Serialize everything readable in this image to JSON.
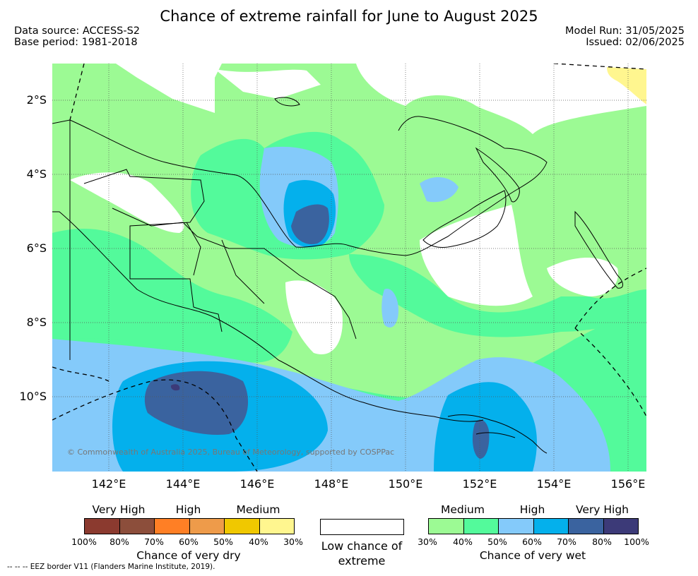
{
  "header": {
    "title": "Chance of extreme rainfall for June to August 2025",
    "data_source": "Data source: ACCESS-S2",
    "base_period": "Base period: 1981-2018",
    "model_run": "Model Run: 31/05/2025",
    "issued": "Issued: 02/06/2025"
  },
  "map": {
    "lat_labels": [
      "2°S",
      "4°S",
      "6°S",
      "8°S",
      "10°S"
    ],
    "lon_labels": [
      "142°E",
      "144°E",
      "146°E",
      "148°E",
      "150°E",
      "152°E",
      "154°E",
      "156°E"
    ],
    "copyright": "© Commonwealth of Australia 2025, Bureau of Meteorology, supported by COSPPac"
  },
  "legend": {
    "dry": {
      "title": "Chance of very dry",
      "levels": [
        "Very High",
        "High",
        "Medium"
      ],
      "ticks": [
        "100%",
        "80%",
        "70%",
        "60%",
        "50%",
        "40%",
        "30%"
      ],
      "colors": [
        "#8b3a2f",
        "#8c4e3b",
        "#ff7f25",
        "#ee9b4a",
        "#f0c800",
        "#fff68f"
      ]
    },
    "low": {
      "label": "Low chance of extreme"
    },
    "wet": {
      "title": "Chance of very wet",
      "levels": [
        "Medium",
        "High",
        "Very High"
      ],
      "ticks": [
        "30%",
        "40%",
        "50%",
        "60%",
        "70%",
        "80%",
        "100%"
      ],
      "colors": [
        "#9cfa94",
        "#53fa9b",
        "#84cafa",
        "#04b0ec",
        "#3a639f",
        "#3c3a78"
      ]
    }
  },
  "footnote": "--  --  -- EEZ border V11 (Flanders Marine Institute, 2019)."
}
